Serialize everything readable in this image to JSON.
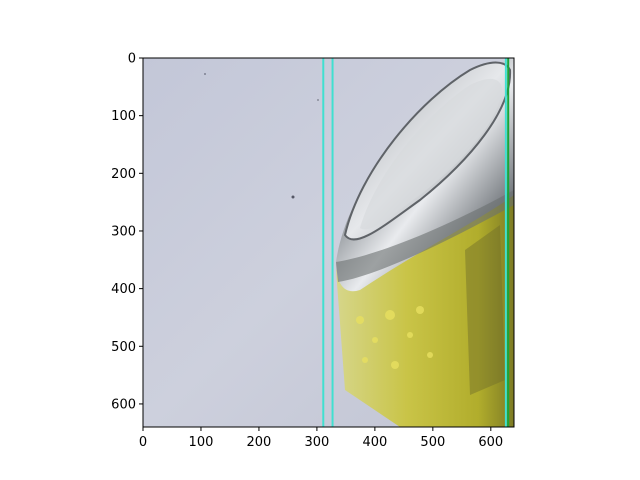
{
  "figure": {
    "image_description_name": "photo-can-on-white-surface",
    "x_axis": {
      "range": [
        0,
        640
      ],
      "ticks": [
        {
          "value": 0,
          "label": "0"
        },
        {
          "value": 100,
          "label": "100"
        },
        {
          "value": 200,
          "label": "200"
        },
        {
          "value": 300,
          "label": "300"
        },
        {
          "value": 400,
          "label": "400"
        },
        {
          "value": 500,
          "label": "500"
        },
        {
          "value": 600,
          "label": "600"
        }
      ]
    },
    "y_axis": {
      "range": [
        0,
        640
      ],
      "inverted": true,
      "ticks": [
        {
          "value": 0,
          "label": "0"
        },
        {
          "value": 100,
          "label": "100"
        },
        {
          "value": 200,
          "label": "200"
        },
        {
          "value": 300,
          "label": "300"
        },
        {
          "value": 400,
          "label": "400"
        },
        {
          "value": 500,
          "label": "500"
        },
        {
          "value": 600,
          "label": "600"
        }
      ]
    },
    "overlay_lines": [
      {
        "name": "cyan-line-1",
        "x": 311,
        "color": "#40e0d0"
      },
      {
        "name": "cyan-line-2",
        "x": 327,
        "color": "#40e0d0"
      },
      {
        "name": "cyan-line-3",
        "x": 626,
        "color": "#40e0d0"
      },
      {
        "name": "green-line",
        "x": 630,
        "color": "#1aa53a"
      }
    ],
    "colors": {
      "background": "#c9ccda",
      "can_metal": "#b6babf",
      "can_label": "#c5c24c"
    }
  }
}
